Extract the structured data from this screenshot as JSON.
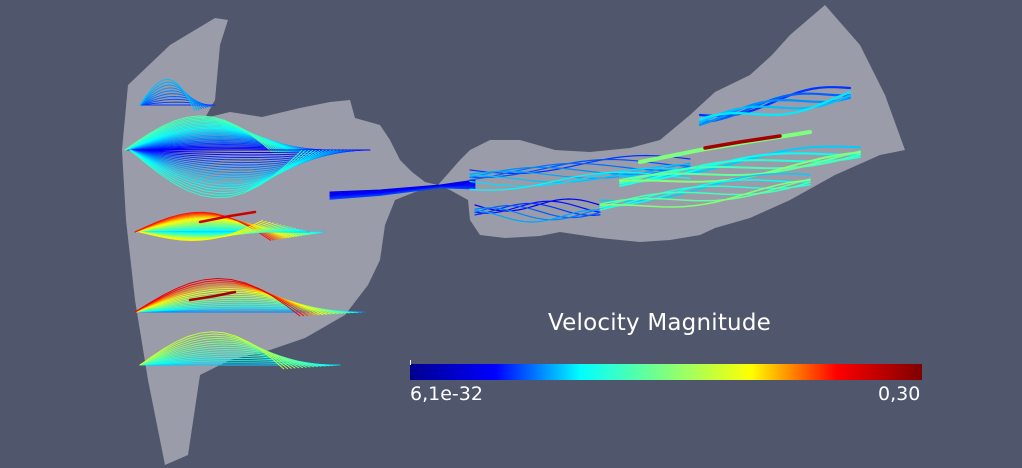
{
  "colors": {
    "background": "#50566b",
    "domain": "#9a9da9",
    "text": "#ffffff",
    "colormap": [
      "#00008f",
      "#0000ff",
      "#00ffff",
      "#7fff7f",
      "#ffff00",
      "#ff0000",
      "#7f0000"
    ]
  },
  "legend": {
    "title": "Velocity Magnitude",
    "min_label": "6,1e-32",
    "max_label": "0,30"
  }
}
